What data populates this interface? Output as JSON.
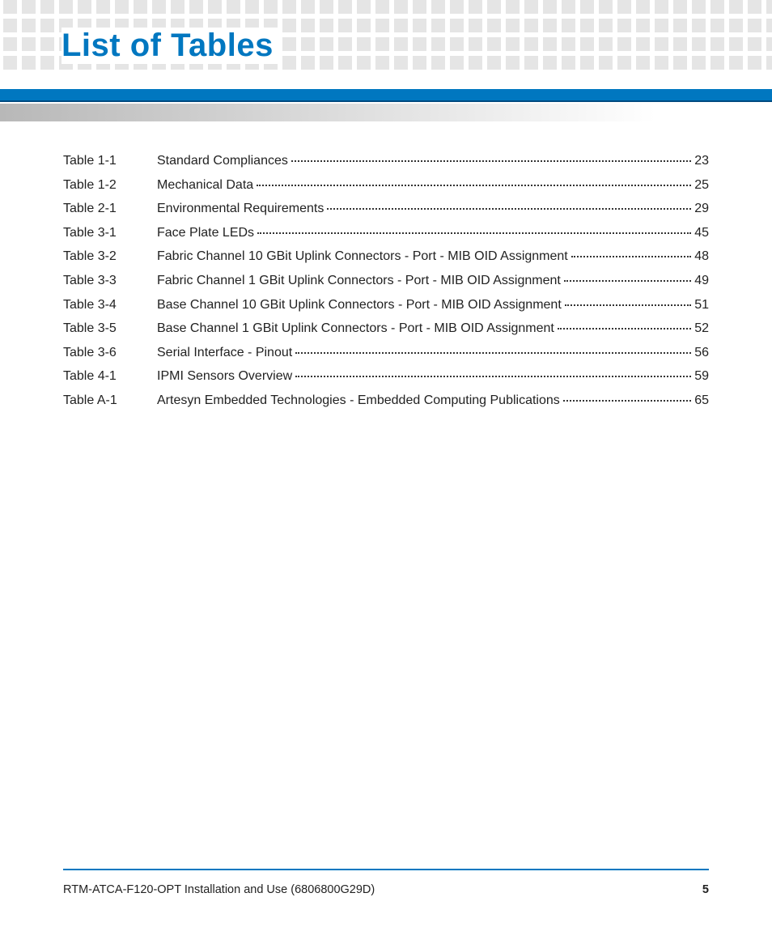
{
  "title": "List of Tables",
  "title_color": "#0077c0",
  "accent_color": "#0077c0",
  "pattern_square_color": "#e5e5e5",
  "entries": [
    {
      "label": "Table 1-1",
      "title": "Standard Compliances",
      "page": "23"
    },
    {
      "label": "Table 1-2",
      "title": "Mechanical Data",
      "page": "25"
    },
    {
      "label": "Table 2-1",
      "title": "Environmental Requirements",
      "page": "29"
    },
    {
      "label": "Table 3-1",
      "title": "Face Plate LEDs",
      "page": "45"
    },
    {
      "label": "Table 3-2",
      "title": "Fabric Channel 10 GBit Uplink Connectors - Port - MIB OID Assignment",
      "page": "48"
    },
    {
      "label": "Table 3-3",
      "title": "Fabric Channel 1 GBit Uplink Connectors - Port - MIB OID Assignment",
      "page": "49"
    },
    {
      "label": "Table 3-4",
      "title": "Base Channel 10 GBit Uplink Connectors - Port - MIB OID Assignment",
      "page": "51"
    },
    {
      "label": "Table 3-5",
      "title": "Base Channel 1 GBit Uplink Connectors - Port - MIB OID Assignment",
      "page": "52"
    },
    {
      "label": "Table 3-6",
      "title": "Serial Interface - Pinout",
      "page": "56"
    },
    {
      "label": "Table 4-1",
      "title": "IPMI Sensors Overview",
      "page": "59"
    },
    {
      "label": "Table A-1",
      "title": "Artesyn Embedded Technologies - Embedded Computing Publications",
      "page": "65"
    }
  ],
  "footer": {
    "doc_title": "RTM-ATCA-F120-OPT Installation and Use (6806800G29D)",
    "page_number": "5"
  }
}
